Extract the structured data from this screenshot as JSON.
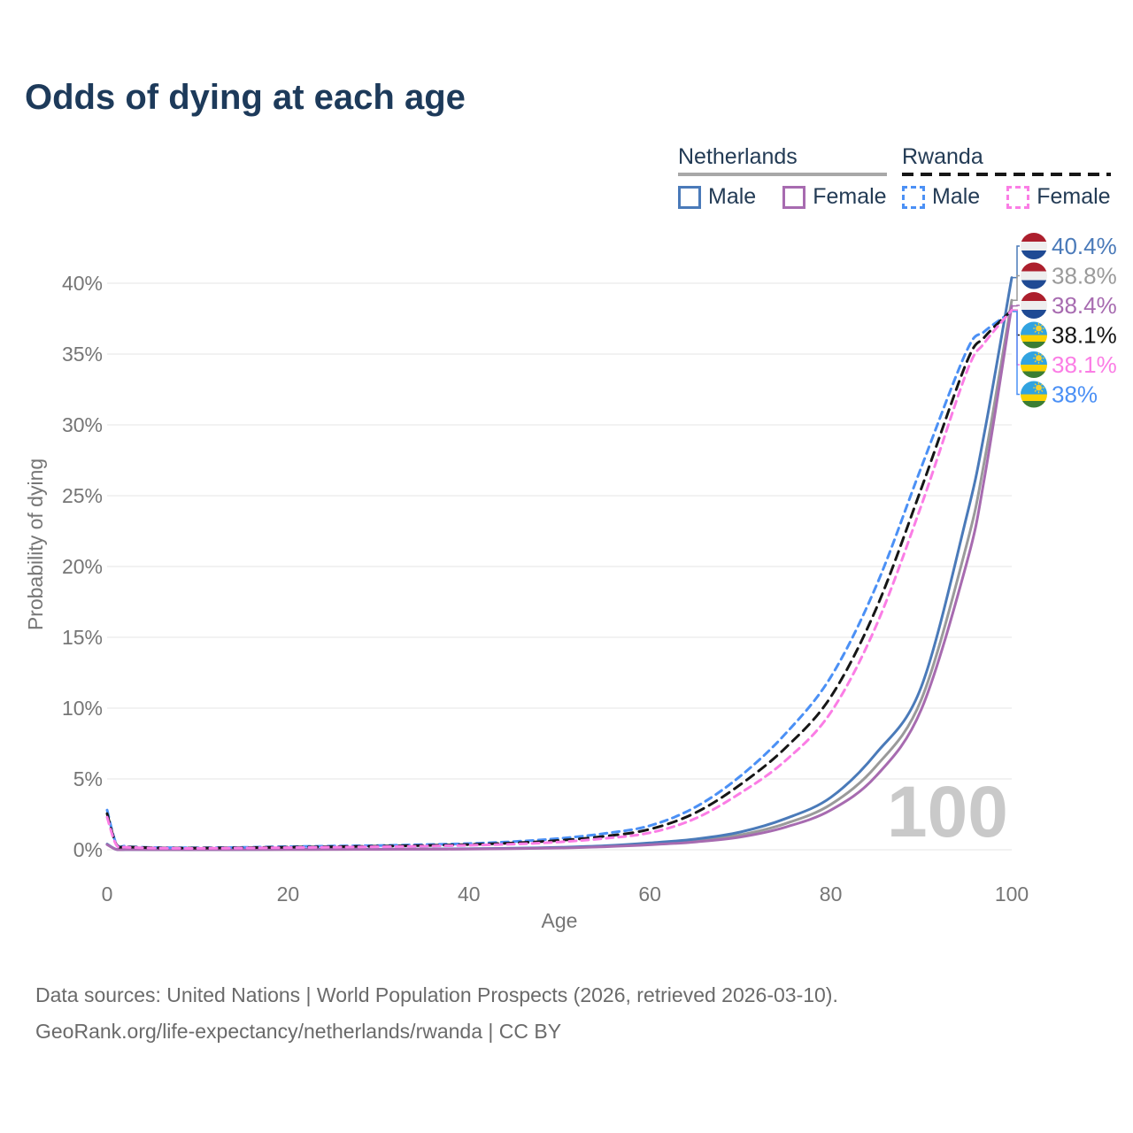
{
  "title": "Odds of dying at each age",
  "colors": {
    "title_text": "#1d3a5a",
    "legend_text": "#233b55",
    "axis_text": "#767676",
    "gridline": "#eaeaea",
    "footer_text": "#6a6a6a",
    "watermark": "#c9c9c9",
    "netherlands_male": "#4a7ab9",
    "netherlands_female": "#a76bb0",
    "netherlands_both": "#9a9a9a",
    "rwanda_male": "#4b90f5",
    "rwanda_female": "#fb7de5",
    "rwanda_both": "#161616"
  },
  "legend": {
    "groups": [
      {
        "label": "Netherlands",
        "line_style": "solid",
        "line_color": "#a8a8a8",
        "items": [
          {
            "label": "Male",
            "color": "#4a7ab9",
            "dashed": false
          },
          {
            "label": "Female",
            "color": "#a76bb0",
            "dashed": false
          }
        ]
      },
      {
        "label": "Rwanda",
        "line_style": "dashed",
        "line_color": "#161616",
        "items": [
          {
            "label": "Male",
            "color": "#4b90f5",
            "dashed": true
          },
          {
            "label": "Female",
            "color": "#fb7de5",
            "dashed": true
          }
        ]
      }
    ]
  },
  "chart_data": {
    "type": "line",
    "title": "Odds of dying at each age",
    "xlabel": "Age",
    "ylabel": "Probability of dying",
    "xlim": [
      0,
      100
    ],
    "ylim": [
      0,
      42
    ],
    "x_ticks": [
      0,
      20,
      40,
      60,
      80,
      100
    ],
    "y_ticks": [
      0,
      5,
      10,
      15,
      20,
      25,
      30,
      35,
      40
    ],
    "y_tick_suffix": "%",
    "grid": "horizontal gridlines only",
    "legend_position": "top-right",
    "age_counter_watermark": "100",
    "ages": [
      0,
      1,
      2,
      3,
      5,
      8,
      10,
      15,
      20,
      25,
      30,
      35,
      40,
      45,
      50,
      55,
      60,
      65,
      70,
      75,
      80,
      85,
      90,
      95,
      97,
      100
    ],
    "series": [
      {
        "id": "nl_both",
        "name": "Netherlands",
        "country": "netherlands",
        "sex": "both",
        "color": "#9a9a9a",
        "dashed": false,
        "end_label": "38.8%",
        "values": [
          0.38,
          0.028,
          0.016,
          0.013,
          0.01,
          0.009,
          0.009,
          0.013,
          0.022,
          0.027,
          0.032,
          0.042,
          0.06,
          0.095,
          0.145,
          0.24,
          0.41,
          0.64,
          1.05,
          1.85,
          3.2,
          5.9,
          10.6,
          21.5,
          27.5,
          38.8
        ]
      },
      {
        "id": "nl_male",
        "name": "Netherlands Male",
        "country": "netherlands",
        "sex": "male",
        "color": "#4a7ab9",
        "dashed": false,
        "end_label": "40.4%",
        "values": [
          0.4,
          0.03,
          0.018,
          0.014,
          0.011,
          0.01,
          0.01,
          0.015,
          0.03,
          0.035,
          0.04,
          0.05,
          0.07,
          0.11,
          0.17,
          0.28,
          0.48,
          0.75,
          1.25,
          2.2,
          3.7,
          6.8,
          11.5,
          23.5,
          29.5,
          40.4
        ]
      },
      {
        "id": "nl_female",
        "name": "Netherlands Female",
        "country": "netherlands",
        "sex": "female",
        "color": "#a76bb0",
        "dashed": false,
        "end_label": "38.4%",
        "values": [
          0.36,
          0.026,
          0.015,
          0.012,
          0.009,
          0.008,
          0.008,
          0.011,
          0.018,
          0.022,
          0.027,
          0.036,
          0.052,
          0.082,
          0.125,
          0.21,
          0.35,
          0.55,
          0.9,
          1.6,
          2.8,
          5.2,
          9.9,
          20.2,
          26.3,
          38.4
        ]
      },
      {
        "id": "rw_male",
        "name": "Rwanda Male",
        "country": "rwanda",
        "sex": "male",
        "color": "#4b90f5",
        "dashed": true,
        "end_label": "38%",
        "values": [
          2.8,
          0.45,
          0.25,
          0.2,
          0.16,
          0.14,
          0.14,
          0.17,
          0.22,
          0.26,
          0.3,
          0.36,
          0.44,
          0.58,
          0.8,
          1.15,
          1.7,
          3.0,
          5.2,
          8.2,
          12.2,
          18.6,
          27.0,
          35.2,
          36.6,
          38.0
        ]
      },
      {
        "id": "rw_both",
        "name": "Rwanda",
        "country": "rwanda",
        "sex": "both",
        "color": "#161616",
        "dashed": true,
        "end_label": "38.1%",
        "values": [
          2.55,
          0.4,
          0.22,
          0.18,
          0.14,
          0.12,
          0.12,
          0.145,
          0.18,
          0.215,
          0.25,
          0.3,
          0.37,
          0.48,
          0.66,
          0.95,
          1.45,
          2.6,
          4.6,
          7.2,
          10.8,
          17.0,
          25.5,
          34.4,
          36.2,
          38.1
        ]
      },
      {
        "id": "rw_female",
        "name": "Rwanda Female",
        "country": "rwanda",
        "sex": "female",
        "color": "#fb7de5",
        "dashed": true,
        "end_label": "38.1%",
        "values": [
          2.3,
          0.36,
          0.19,
          0.155,
          0.12,
          0.1,
          0.1,
          0.12,
          0.15,
          0.18,
          0.21,
          0.25,
          0.31,
          0.4,
          0.55,
          0.8,
          1.2,
          2.2,
          4.0,
          6.3,
          9.7,
          15.8,
          24.3,
          33.7,
          35.8,
          38.1
        ]
      }
    ],
    "end_labels": [
      {
        "series": "nl_male",
        "text": "40.4%"
      },
      {
        "series": "nl_both",
        "text": "38.8%"
      },
      {
        "series": "nl_female",
        "text": "38.4%"
      },
      {
        "series": "rw_both",
        "text": "38.1%"
      },
      {
        "series": "rw_female",
        "text": "38.1%"
      },
      {
        "series": "rw_male",
        "text": "38%"
      }
    ],
    "flags": {
      "netherlands": {
        "red": "#AC1F2D",
        "white": "#eeeeee",
        "blue": "#1f4a94"
      },
      "rwanda": {
        "blue": "#31a3e0",
        "yellow": "#FAD201",
        "green": "#3b7d33",
        "sun": "#F8D12E"
      }
    }
  },
  "footer": {
    "line1": "Data sources: United Nations | World Population Prospects (2026, retrieved 2026-03-10).",
    "line2": "GeoRank.org/life-expectancy/netherlands/rwanda | CC BY"
  }
}
